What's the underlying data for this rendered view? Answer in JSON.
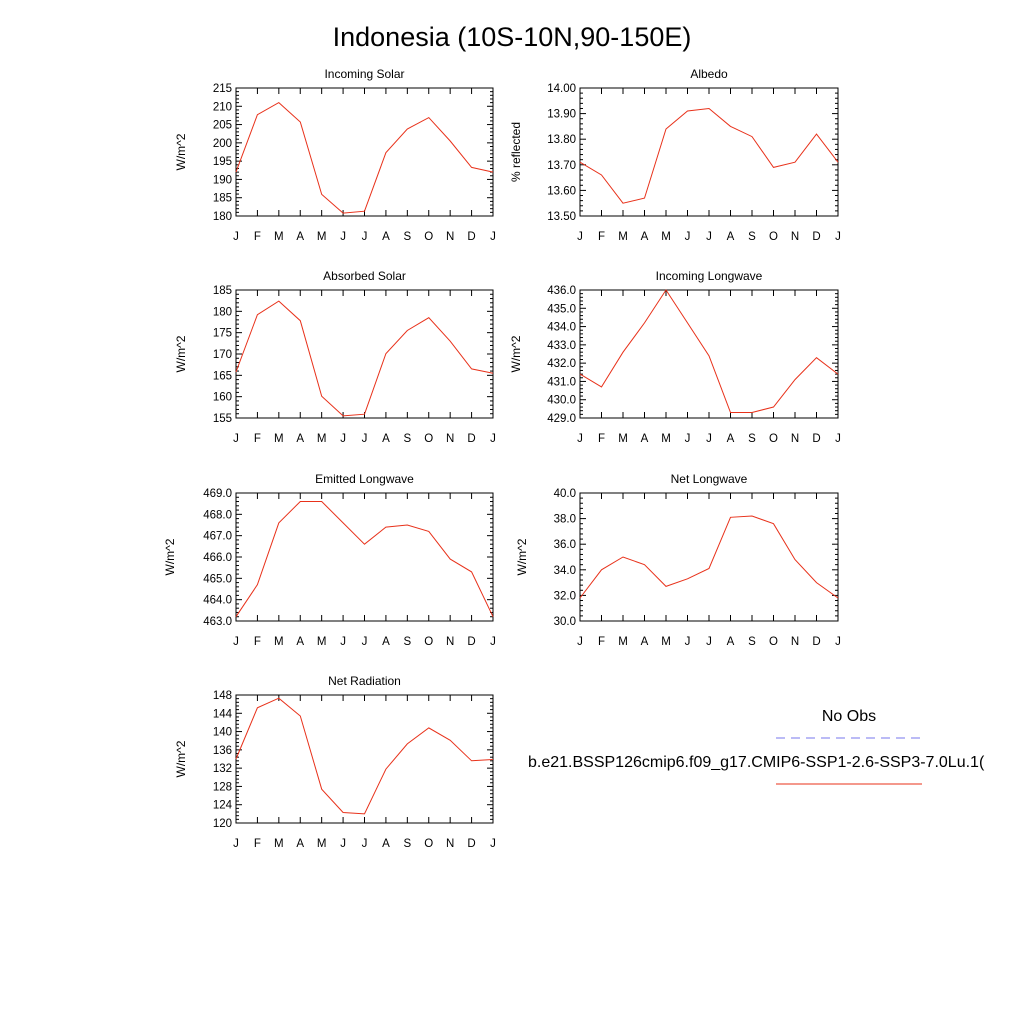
{
  "title": "Indonesia (10S-10N,90-150E)",
  "colors": {
    "model_line": "#e8311a",
    "obs_line": "#7777ee"
  },
  "legend": {
    "obs_label": "No Obs",
    "model_label": "b.e21.BSSP126cmip6.f09_g17.CMIP6-SSP1-2.6-SSP3-7.0Lu.1("
  },
  "chart_data": [
    {
      "type": "line",
      "title": "Incoming Solar",
      "ylabel": "W/m^2",
      "categories": [
        "J",
        "F",
        "M",
        "A",
        "M",
        "J",
        "J",
        "A",
        "S",
        "O",
        "N",
        "D",
        "J"
      ],
      "ylim": [
        180,
        215
      ],
      "yticks": [
        "180",
        "185",
        "190",
        "195",
        "200",
        "205",
        "210",
        "215"
      ],
      "series": [
        {
          "values": [
            192,
            207.7,
            211,
            205.7,
            185.9,
            180.8,
            181.3,
            197.3,
            203.8,
            206.9,
            200.5,
            193.3,
            192
          ]
        }
      ]
    },
    {
      "type": "line",
      "title": "Albedo",
      "ylabel": "% reflected",
      "categories": [
        "J",
        "F",
        "M",
        "A",
        "M",
        "J",
        "J",
        "A",
        "S",
        "O",
        "N",
        "D",
        "J"
      ],
      "ylim": [
        13.5,
        14.0
      ],
      "yticks": [
        "13.50",
        "13.60",
        "13.70",
        "13.80",
        "13.90",
        "14.00"
      ],
      "series": [
        {
          "values": [
            13.71,
            13.66,
            13.55,
            13.57,
            13.84,
            13.91,
            13.92,
            13.85,
            13.81,
            13.69,
            13.71,
            13.82,
            13.71
          ]
        }
      ]
    },
    {
      "type": "line",
      "title": "Absorbed Solar",
      "ylabel": "W/m^2",
      "categories": [
        "J",
        "F",
        "M",
        "A",
        "M",
        "J",
        "J",
        "A",
        "S",
        "O",
        "N",
        "D",
        "J"
      ],
      "ylim": [
        155,
        185
      ],
      "yticks": [
        "155",
        "160",
        "165",
        "170",
        "175",
        "180",
        "185"
      ],
      "series": [
        {
          "values": [
            165.8,
            179.2,
            182.4,
            177.8,
            160.1,
            155.5,
            155.9,
            170.1,
            175.5,
            178.5,
            173,
            166.5,
            165.5
          ]
        }
      ]
    },
    {
      "type": "line",
      "title": "Incoming Longwave",
      "ylabel": "W/m^2",
      "categories": [
        "J",
        "F",
        "M",
        "A",
        "M",
        "J",
        "J",
        "A",
        "S",
        "O",
        "N",
        "D",
        "J"
      ],
      "ylim": [
        429,
        436
      ],
      "yticks": [
        "429.0",
        "430.0",
        "431.0",
        "432.0",
        "433.0",
        "434.0",
        "435.0",
        "436.0"
      ],
      "series": [
        {
          "values": [
            431.4,
            430.7,
            432.6,
            434.2,
            436,
            434.2,
            432.4,
            429.3,
            429.3,
            429.6,
            431.1,
            432.3,
            431.4
          ]
        }
      ]
    },
    {
      "type": "line",
      "title": "Emitted Longwave",
      "ylabel": "W/m^2",
      "categories": [
        "J",
        "F",
        "M",
        "A",
        "M",
        "J",
        "J",
        "A",
        "S",
        "O",
        "N",
        "D",
        "J"
      ],
      "ylim": [
        463,
        469
      ],
      "yticks": [
        "463.0",
        "464.0",
        "465.0",
        "466.0",
        "467.0",
        "468.0",
        "469.0"
      ],
      "series": [
        {
          "values": [
            463.2,
            464.7,
            467.6,
            468.6,
            468.6,
            467.6,
            466.6,
            467.4,
            467.5,
            467.2,
            465.9,
            465.3,
            463.2
          ]
        }
      ]
    },
    {
      "type": "line",
      "title": "Net Longwave",
      "ylabel": "W/m^2",
      "categories": [
        "J",
        "F",
        "M",
        "A",
        "M",
        "J",
        "J",
        "A",
        "S",
        "O",
        "N",
        "D",
        "J"
      ],
      "ylim": [
        30,
        40
      ],
      "yticks": [
        "30.0",
        "32.0",
        "34.0",
        "36.0",
        "38.0",
        "40.0"
      ],
      "series": [
        {
          "values": [
            31.8,
            34,
            35,
            34.4,
            32.7,
            33.3,
            34.1,
            38.1,
            38.2,
            37.6,
            34.8,
            33,
            31.8
          ]
        }
      ]
    },
    {
      "type": "line",
      "title": "Net Radiation",
      "ylabel": "W/m^2",
      "categories": [
        "J",
        "F",
        "M",
        "A",
        "M",
        "J",
        "J",
        "A",
        "S",
        "O",
        "N",
        "D",
        "J"
      ],
      "ylim": [
        120,
        148
      ],
      "yticks": [
        "120",
        "124",
        "128",
        "132",
        "136",
        "140",
        "144",
        "148"
      ],
      "series": [
        {
          "values": [
            134,
            145.2,
            147.3,
            143.4,
            127.4,
            122.3,
            122,
            131.8,
            137.3,
            140.8,
            138.1,
            133.6,
            133.9
          ]
        }
      ]
    }
  ]
}
